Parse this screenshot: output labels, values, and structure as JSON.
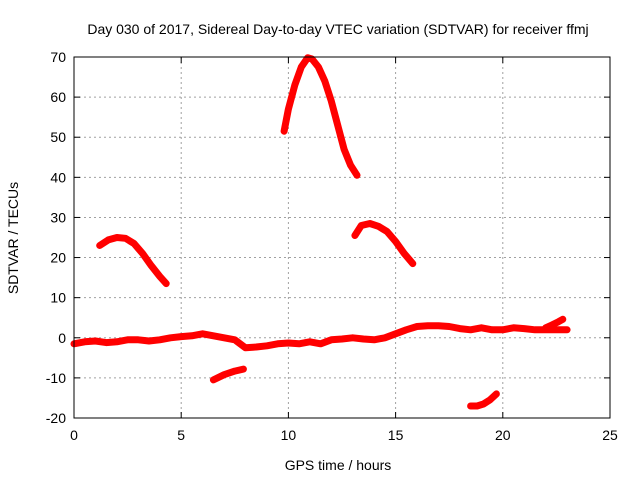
{
  "chart_data": {
    "type": "scatter",
    "title": "Day 030 of 2017, Sidereal Day-to-day VTEC variation (SDTVAR) for receiver ffmj",
    "xlabel": "GPS time / hours",
    "ylabel": "SDTVAR / TECUs",
    "xlim": [
      0,
      25
    ],
    "ylim": [
      -20,
      70
    ],
    "x_ticks": [
      0,
      5,
      10,
      15,
      20,
      25
    ],
    "y_ticks": [
      -20,
      -10,
      0,
      10,
      20,
      30,
      40,
      50,
      60,
      70
    ],
    "x_tick_labels": [
      "0",
      "5",
      "10",
      "15",
      "20",
      "25"
    ],
    "y_tick_labels": [
      "-20",
      "-10",
      "0",
      "10",
      "20",
      "30",
      "40",
      "50",
      "60",
      "70"
    ],
    "grid": true,
    "legend": "none",
    "series_color": "#ff0000",
    "segments": [
      {
        "x": [
          1.2,
          1.6,
          2.0,
          2.4,
          2.8,
          3.2,
          3.6,
          4.0,
          4.3
        ],
        "y": [
          23,
          24.4,
          25,
          24.8,
          23.5,
          21,
          18,
          15.3,
          13.5
        ]
      },
      {
        "x": [
          9.8,
          10.0,
          10.3,
          10.6,
          10.9,
          11.1,
          11.4,
          11.7,
          12.0,
          12.3,
          12.6,
          12.9,
          13.2
        ],
        "y": [
          51.5,
          57,
          63,
          67.5,
          69.8,
          69.5,
          67.5,
          64,
          59,
          53,
          47,
          43,
          40.5
        ]
      },
      {
        "x": [
          13.1,
          13.4,
          13.8,
          14.2,
          14.6,
          15.0,
          15.4,
          15.8
        ],
        "y": [
          25.5,
          28,
          28.5,
          27.8,
          26.5,
          24,
          21,
          18.5
        ]
      },
      {
        "x": [
          0,
          0.5,
          1.0,
          1.5,
          2.0,
          2.5,
          3.0,
          3.5,
          4.0,
          4.5,
          5.0,
          5.5,
          6.0,
          6.5,
          7.0,
          7.5,
          8.0,
          8.5,
          9.0,
          9.5,
          10.0,
          10.5,
          11.0,
          11.5,
          12.0,
          12.5,
          13.0,
          13.5,
          14.0,
          14.5,
          15.0,
          15.5,
          16.0,
          16.5,
          17.0,
          17.5,
          18.0,
          18.5,
          19.0,
          19.5,
          20.0,
          20.5,
          21.0,
          21.5,
          22.0,
          22.5,
          23.0
        ],
        "y": [
          -1.5,
          -1,
          -0.8,
          -1.2,
          -1,
          -0.5,
          -0.5,
          -0.8,
          -0.5,
          0,
          0.3,
          0.5,
          1,
          0.5,
          0,
          -0.5,
          -2.5,
          -2.3,
          -2,
          -1.5,
          -1.3,
          -1.5,
          -1,
          -1.5,
          -0.5,
          -0.3,
          0,
          -0.3,
          -0.5,
          0,
          1,
          2,
          2.8,
          3,
          3,
          2.8,
          2.3,
          2,
          2.5,
          2,
          2,
          2.5,
          2.3,
          2,
          2,
          2,
          2
        ]
      },
      {
        "x": [
          22.0,
          22.3,
          22.6,
          22.8
        ],
        "y": [
          2.5,
          3.2,
          4,
          4.6
        ]
      },
      {
        "x": [
          6.5,
          7.0,
          7.5,
          7.9
        ],
        "y": [
          -10.5,
          -9.2,
          -8.3,
          -7.8
        ]
      },
      {
        "x": [
          18.5,
          18.8,
          19.1,
          19.4,
          19.7
        ],
        "y": [
          -17,
          -17,
          -16.5,
          -15.5,
          -14
        ]
      }
    ]
  }
}
